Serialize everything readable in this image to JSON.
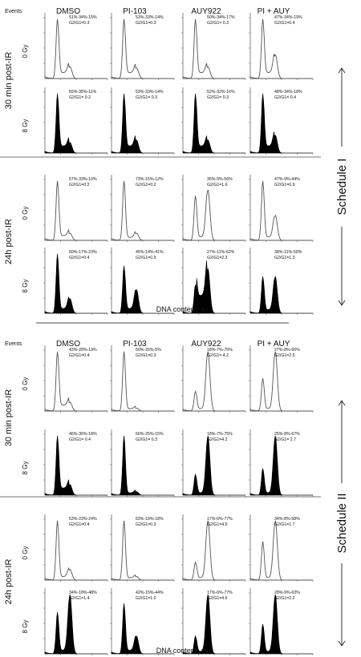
{
  "events_label": "Events",
  "columns": [
    "DMSO",
    "PI-103",
    "AUY922",
    "PI + AUY"
  ],
  "x_axis_label": "DNA content, a.u.",
  "colors": {
    "outline": "#555555",
    "fill": "#000000",
    "axis": "#666666",
    "divider": "#444444"
  },
  "chart_data": {
    "type": "area",
    "description_units": "percent G1 - S - G2/M and G2/G1 ratio per histogram",
    "schedules": [
      {
        "name": "Schedule I",
        "time_blocks": [
          {
            "label": "30 min post-IR",
            "rows": [
              {
                "dose": "0 Gy",
                "style": "outline",
                "panels": [
                  {
                    "stats": "51%-34%-15%",
                    "ratio": "G2/G1=0.3",
                    "g1": 1.0,
                    "s": 0.1,
                    "g2": 0.2
                  },
                  {
                    "stats": "53%-33%-14%",
                    "ratio": "G2/G1=0.3",
                    "g1": 1.0,
                    "s": 0.1,
                    "g2": 0.18
                  },
                  {
                    "stats": "50%-34%-17%",
                    "ratio": "G2/G1= 0.3",
                    "g1": 1.0,
                    "s": 0.1,
                    "g2": 0.2
                  },
                  {
                    "stats": "47%-34%-19%",
                    "ratio": "G2/G1=0.4",
                    "g1": 1.0,
                    "s": 0.1,
                    "g2": 0.4
                  }
                ]
              },
              {
                "dose": "8 Gy",
                "style": "filled",
                "panels": [
                  {
                    "stats": "55%-35%-11%",
                    "ratio": "G2/G1= 0.2",
                    "g1": 1.0,
                    "s": 0.12,
                    "g2": 0.18
                  },
                  {
                    "stats": "53%-33%-14%",
                    "ratio": "G2/G1= 0.3",
                    "g1": 1.0,
                    "s": 0.12,
                    "g2": 0.22
                  },
                  {
                    "stats": "52%-32%-16%",
                    "ratio": "G2/G1= 0.3",
                    "g1": 1.0,
                    "s": 0.12,
                    "g2": 0.22
                  },
                  {
                    "stats": "48%-34%-18%",
                    "ratio": "G2/G1= 0.4",
                    "g1": 1.0,
                    "s": 0.12,
                    "g2": 0.3
                  }
                ]
              }
            ]
          },
          {
            "label": "24h post-IR",
            "rows": [
              {
                "dose": "0 Gy",
                "style": "outline",
                "panels": [
                  {
                    "stats": "57%-33%-10%",
                    "ratio": "G2/G1=0.2",
                    "g1": 1.0,
                    "s": 0.08,
                    "g2": 0.12
                  },
                  {
                    "stats": "73%-15%-12%",
                    "ratio": "G2/G1=0.2",
                    "g1": 1.0,
                    "s": 0.05,
                    "g2": 0.12
                  },
                  {
                    "stats": "35%-9%-56%",
                    "ratio": "G2/G1=1.6",
                    "g1": 0.75,
                    "s": 0.06,
                    "g2": 0.85
                  },
                  {
                    "stats": "47%-9%-44%",
                    "ratio": "G2/G1=0.9",
                    "g1": 1.0,
                    "s": 0.06,
                    "g2": 0.42
                  }
                ]
              },
              {
                "dose": "8 Gy",
                "style": "filled",
                "panels": [
                  {
                    "stats": "60%-17%-23%",
                    "ratio": "G2/G1=0.4",
                    "g1": 1.0,
                    "s": 0.08,
                    "g2": 0.25
                  },
                  {
                    "stats": "45%-14%-41%",
                    "ratio": "G2/G1=0.9",
                    "g1": 0.8,
                    "s": 0.08,
                    "g2": 0.4
                  },
                  {
                    "stats": "27%-11%-62%",
                    "ratio": "G2/G1=2.3",
                    "g1": 0.48,
                    "s": 0.3,
                    "g2": 0.75
                  },
                  {
                    "stats": "38%-11%-50%",
                    "ratio": "G2/G1=1.3",
                    "g1": 0.62,
                    "s": 0.06,
                    "g2": 0.62
                  }
                ]
              }
            ]
          }
        ]
      },
      {
        "name": "Schedule II",
        "time_blocks": [
          {
            "label": "30 min post-IR",
            "rows": [
              {
                "dose": "0 Gy",
                "style": "outline",
                "panels": [
                  {
                    "stats": "43%-28%-19%",
                    "ratio": "G2/G1=0.4",
                    "g1": 1.0,
                    "s": 0.1,
                    "g2": 0.15
                  },
                  {
                    "stats": "59%-26%-5%",
                    "ratio": "G2/G1=0.3",
                    "g1": 1.0,
                    "s": 0.04,
                    "g2": 0.05
                  },
                  {
                    "stats": "18%-7%-75%",
                    "ratio": "G2/G1= 4.2",
                    "g1": 0.33,
                    "s": 0.04,
                    "g2": 1.0
                  },
                  {
                    "stats": "27%-8%-66%",
                    "ratio": "G2/G1=2.5",
                    "g1": 0.55,
                    "s": 0.04,
                    "g2": 1.0
                  }
                ]
              },
              {
                "dose": "8 Gy",
                "style": "filled",
                "panels": [
                  {
                    "stats": "46%-36%-18%",
                    "ratio": "G2/G1= 0.4",
                    "g1": 1.0,
                    "s": 0.12,
                    "g2": 0.18
                  },
                  {
                    "stats": "60%-25%-15%",
                    "ratio": "G2/G1= 0.3",
                    "g1": 1.0,
                    "s": 0.04,
                    "g2": 0.06
                  },
                  {
                    "stats": "18%-7%-75%",
                    "ratio": "G2/G1=4.2",
                    "g1": 0.35,
                    "s": 0.04,
                    "g2": 1.0
                  },
                  {
                    "stats": "25%-8%-67%",
                    "ratio": "G2/G1= 2.7",
                    "g1": 0.45,
                    "s": 0.04,
                    "g2": 1.0
                  }
                ]
              }
            ]
          },
          {
            "label": "24h post-IR",
            "rows": [
              {
                "dose": "0 Gy",
                "style": "outline",
                "panels": [
                  {
                    "stats": "53%-23%-24%",
                    "ratio": "G2/G1=0.4",
                    "g1": 1.0,
                    "s": 0.06,
                    "g2": 0.18
                  },
                  {
                    "stats": "63%-19%-18%",
                    "ratio": "G2/G1=0.3",
                    "g1": 1.0,
                    "s": 0.04,
                    "g2": 0.06
                  },
                  {
                    "stats": "17%-6%-77%",
                    "ratio": "G2/G1=4.5",
                    "g1": 0.3,
                    "s": 0.04,
                    "g2": 1.0
                  },
                  {
                    "stats": "34%-8%-58%",
                    "ratio": "G2/G1=1.7",
                    "g1": 0.65,
                    "s": 0.04,
                    "g2": 1.0
                  }
                ]
              },
              {
                "dose": "8 Gy",
                "style": "filled",
                "panels": [
                  {
                    "stats": "34%-18%-48%",
                    "ratio": "G2/G1=1.4",
                    "g1": 0.7,
                    "s": 0.06,
                    "g2": 1.0
                  },
                  {
                    "stats": "42%-15%-44%",
                    "ratio": "G2/G1=1.0",
                    "g1": 0.85,
                    "s": 0.06,
                    "g2": 0.3
                  },
                  {
                    "stats": "17%-6%-77%",
                    "ratio": "G2/G1=4.6",
                    "g1": 0.3,
                    "s": 0.04,
                    "g2": 1.0
                  },
                  {
                    "stats": "28%-9%-63%",
                    "ratio": "G2/G1=2.2",
                    "g1": 0.5,
                    "s": 0.04,
                    "g2": 1.0
                  }
                ]
              }
            ]
          }
        ]
      }
    ]
  }
}
